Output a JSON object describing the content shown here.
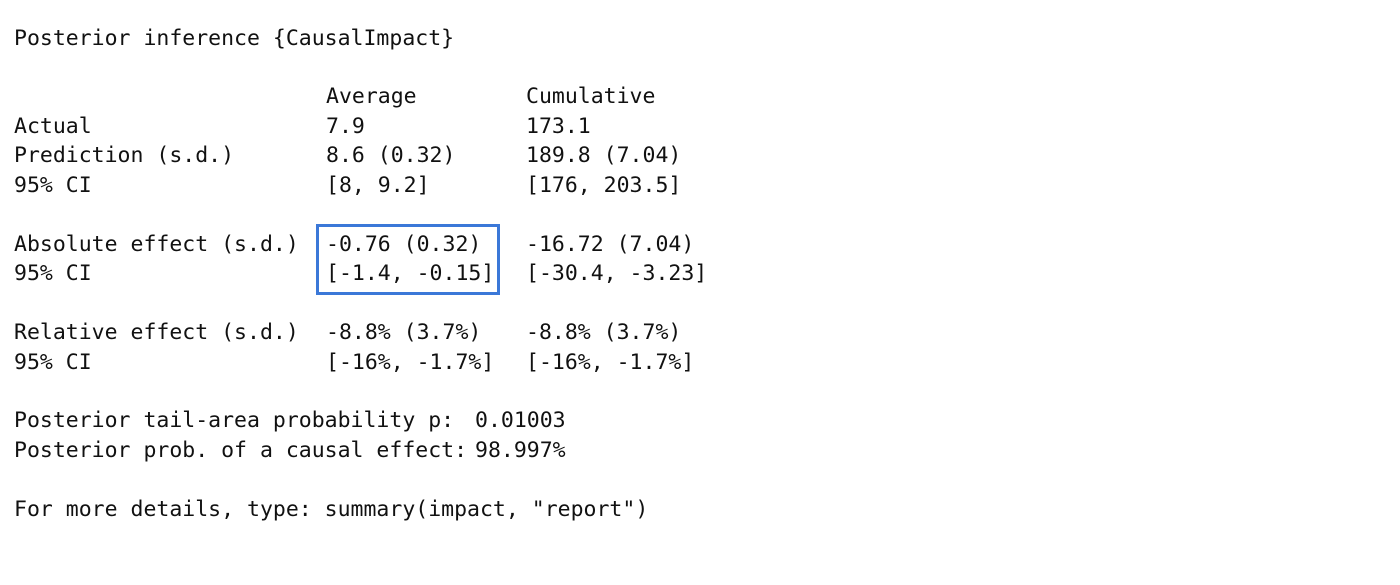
{
  "title": "Posterior inference {CausalImpact}",
  "headers": {
    "average": "Average",
    "cumulative": "Cumulative"
  },
  "rows": [
    {
      "label": "Actual",
      "average": "7.9",
      "cumulative": "173.1"
    },
    {
      "label": "Prediction (s.d.)",
      "average": "8.6 (0.32)",
      "cumulative": "189.8 (7.04)"
    },
    {
      "label": "95% CI",
      "average": "[8, 9.2]",
      "cumulative": "[176, 203.5]"
    },
    {
      "label": "Absolute effect (s.d.)",
      "average": "-0.76 (0.32)",
      "cumulative": "-16.72 (7.04)"
    },
    {
      "label": "95% CI",
      "average": "[-1.4, -0.15]",
      "cumulative": "[-30.4, -3.23]"
    },
    {
      "label": "Relative effect (s.d.)",
      "average": "-8.8% (3.7%)",
      "cumulative": "-8.8% (3.7%)"
    },
    {
      "label": "95% CI",
      "average": "[-16%, -1.7%]",
      "cumulative": "[-16%, -1.7%]"
    }
  ],
  "probabilities": {
    "tail_label": "Posterior tail-area probability p:",
    "tail_value": "0.01003",
    "causal_label": "Posterior prob. of a causal effect:",
    "causal_value": "98.997%"
  },
  "footer": "For more details, type: summary(impact, \"report\")",
  "highlight": {
    "color": "#3b78d8"
  }
}
